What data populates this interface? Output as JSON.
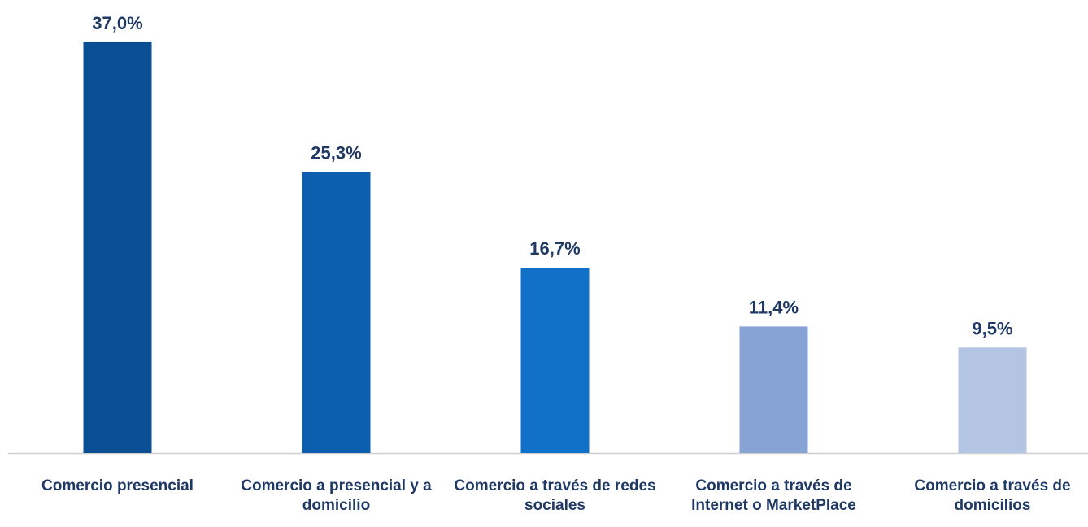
{
  "chart_data": {
    "type": "bar",
    "categories": [
      "Comercio presencial",
      "Comercio a presencial y a domicilio",
      "Comercio a través de redes sociales",
      "Comercio a través de Internet o MarketPlace",
      "Comercio a través de domicilios"
    ],
    "values": [
      37.0,
      25.3,
      16.7,
      11.4,
      9.5
    ],
    "value_labels": [
      "37,0%",
      "25,3%",
      "16,7%",
      "11,4%",
      "9,5%"
    ],
    "colors": [
      "#0a4f93",
      "#0b5fae",
      "#1170c8",
      "#87a3d6",
      "#b4c4e3"
    ],
    "ylim": [
      0,
      40
    ]
  }
}
